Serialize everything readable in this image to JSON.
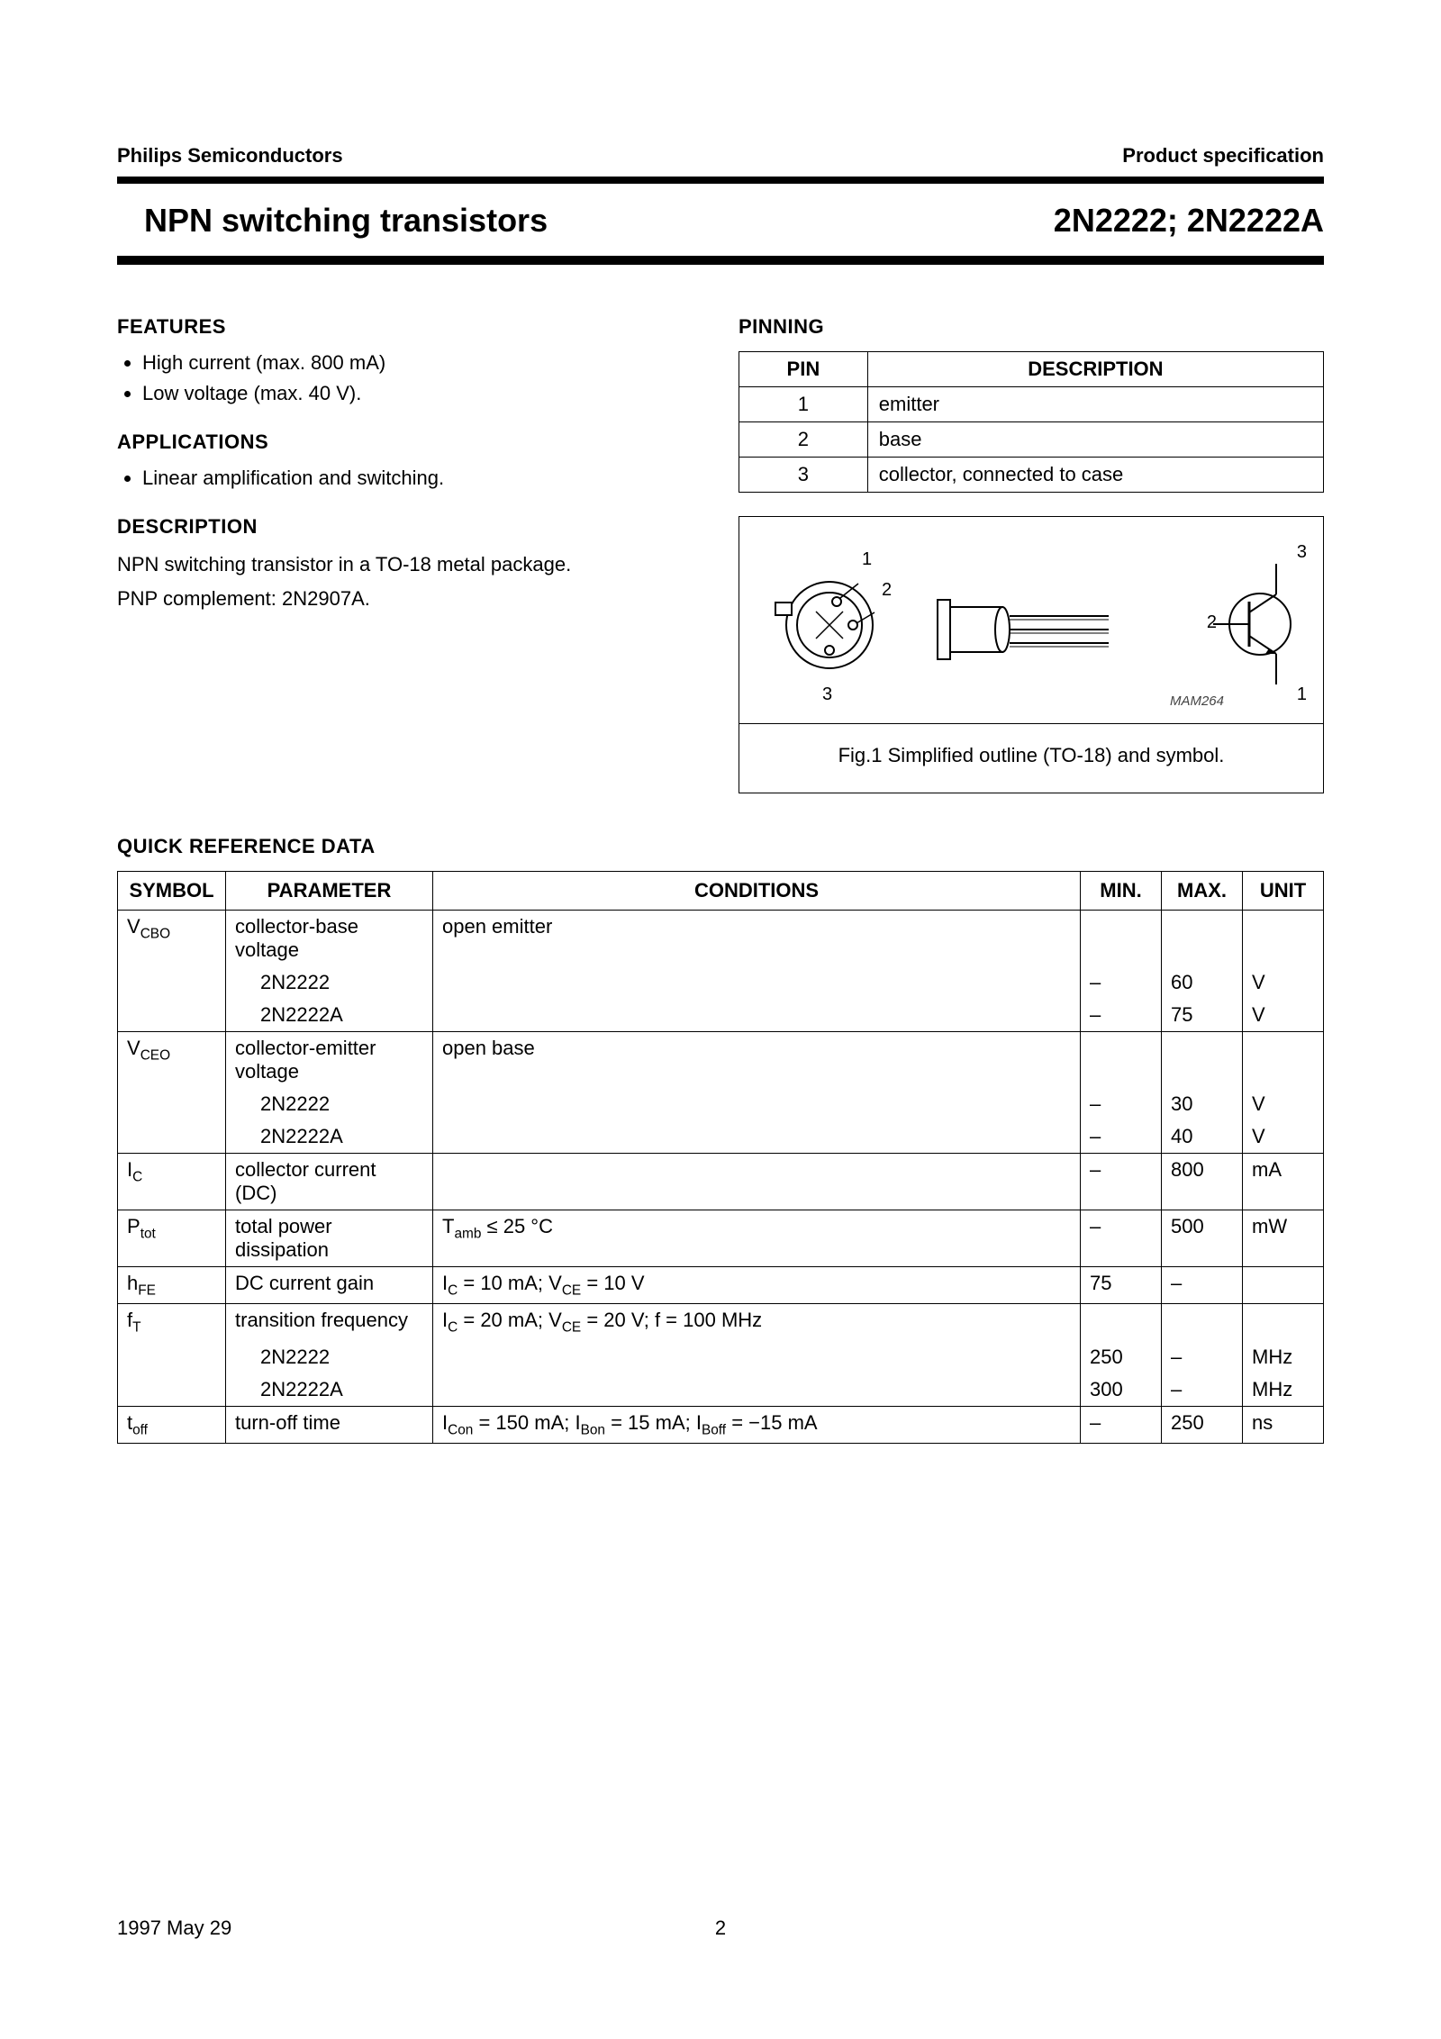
{
  "header": {
    "company": "Philips Semiconductors",
    "doctype": "Product specification"
  },
  "title": {
    "left": "NPN switching transistors",
    "right": "2N2222; 2N2222A"
  },
  "features": {
    "heading": "FEATURES",
    "items": [
      "High current (max. 800 mA)",
      "Low voltage (max. 40 V)."
    ]
  },
  "applications": {
    "heading": "APPLICATIONS",
    "items": [
      "Linear amplification and switching."
    ]
  },
  "description": {
    "heading": "DESCRIPTION",
    "line1": "NPN switching transistor in a TO-18 metal package.",
    "line2": "PNP complement: 2N2907A."
  },
  "pinning": {
    "heading": "PINNING",
    "cols": [
      "PIN",
      "DESCRIPTION"
    ],
    "rows": [
      {
        "pin": "1",
        "desc": "emitter"
      },
      {
        "pin": "2",
        "desc": "base"
      },
      {
        "pin": "3",
        "desc": "collector, connected to case"
      }
    ]
  },
  "figure": {
    "mam": "MAM264",
    "caption": "Fig.1  Simplified outline (TO-18) and symbol.",
    "labels": {
      "l1": "1",
      "l2": "2",
      "l3": "3",
      "r1": "1",
      "r2": "2",
      "r3": "3"
    }
  },
  "qrd": {
    "heading": "QUICK REFERENCE DATA",
    "cols": [
      "SYMBOL",
      "PARAMETER",
      "CONDITIONS",
      "MIN.",
      "MAX.",
      "UNIT"
    ],
    "rows": [
      {
        "sym": "V",
        "sub": "CBO",
        "param": "collector-base voltage",
        "cond": "open emitter",
        "min": "",
        "max": "",
        "unit": ""
      },
      {
        "sym": "",
        "sub": "",
        "param_sub": "2N2222",
        "cond": "",
        "min": "–",
        "max": "60",
        "unit": "V"
      },
      {
        "sym": "",
        "sub": "",
        "param_sub": "2N2222A",
        "cond": "",
        "min": "–",
        "max": "75",
        "unit": "V"
      },
      {
        "sym": "V",
        "sub": "CEO",
        "param": "collector-emitter voltage",
        "cond": "open base",
        "min": "",
        "max": "",
        "unit": ""
      },
      {
        "sym": "",
        "sub": "",
        "param_sub": "2N2222",
        "cond": "",
        "min": "–",
        "max": "30",
        "unit": "V"
      },
      {
        "sym": "",
        "sub": "",
        "param_sub": "2N2222A",
        "cond": "",
        "min": "–",
        "max": "40",
        "unit": "V"
      },
      {
        "sym": "I",
        "sub": "C",
        "param": "collector current (DC)",
        "cond": "",
        "min": "–",
        "max": "800",
        "unit": "mA"
      },
      {
        "sym": "P",
        "sub": "tot",
        "param": "total power dissipation",
        "cond_html": "T<sub>amb</sub> ≤ 25 °C",
        "min": "–",
        "max": "500",
        "unit": "mW"
      },
      {
        "sym": "h",
        "sub": "FE",
        "param": "DC current gain",
        "cond_html": "I<sub>C</sub> = 10 mA; V<sub>CE</sub> = 10 V",
        "min": "75",
        "max": "–",
        "unit": ""
      },
      {
        "sym": "f",
        "sub": "T",
        "param": "transition frequency",
        "cond_html": "I<sub>C</sub> = 20 mA; V<sub>CE</sub> = 20 V; f = 100 MHz",
        "min": "",
        "max": "",
        "unit": ""
      },
      {
        "sym": "",
        "sub": "",
        "param_sub": "2N2222",
        "cond": "",
        "min": "250",
        "max": "–",
        "unit": "MHz"
      },
      {
        "sym": "",
        "sub": "",
        "param_sub": "2N2222A",
        "cond": "",
        "min": "300",
        "max": "–",
        "unit": "MHz"
      },
      {
        "sym": "t",
        "sub": "off",
        "param": "turn-off time",
        "cond_html": "I<sub>Con</sub> = 150 mA; I<sub>Bon</sub> = 15 mA; I<sub>Boff</sub> = −15 mA",
        "min": "–",
        "max": "250",
        "unit": "ns"
      }
    ]
  },
  "footer": {
    "date": "1997 May 29",
    "page": "2"
  },
  "colors": {
    "text": "#000000",
    "bg": "#ffffff",
    "rule": "#000000"
  }
}
